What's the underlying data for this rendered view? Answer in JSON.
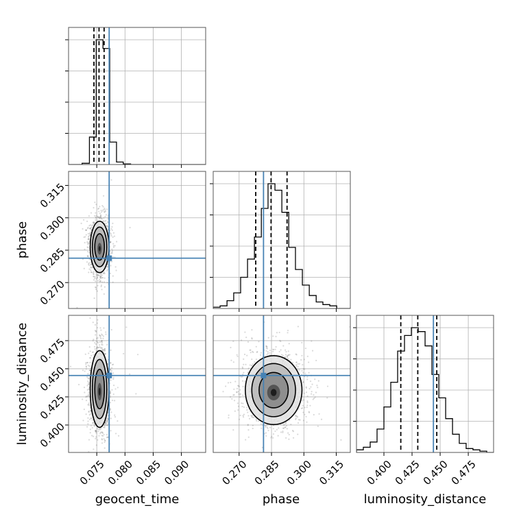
{
  "chart_data": {
    "type": "corner",
    "parameters": [
      "geocent_time",
      "phase",
      "luminosity_distance"
    ],
    "truth": {
      "geocent_time": 0.0772,
      "phase": 0.2813,
      "luminosity_distance": 0.444
    },
    "grid": true,
    "axes": {
      "geocent_time": {
        "range": [
          0.07,
          0.0943
        ],
        "ticks": [
          0.075,
          0.08,
          0.085,
          0.09
        ],
        "tick_labels": [
          "0.075",
          "0.080",
          "0.085",
          "0.090"
        ]
      },
      "phase": {
        "range": [
          0.258,
          0.3215
        ],
        "ticks": [
          0.27,
          0.285,
          0.3,
          0.315
        ],
        "tick_labels": [
          "0.270",
          "0.285",
          "0.300",
          "0.315"
        ]
      },
      "luminosity_distance": {
        "range": [
          0.3756,
          0.4975
        ],
        "ticks": [
          0.4,
          0.425,
          0.45,
          0.475
        ],
        "tick_labels": [
          "0.400",
          "0.425",
          "0.450",
          "0.475"
        ]
      }
    },
    "marginals": {
      "geocent_time": {
        "bin_edges": [
          0.07,
          0.0712,
          0.0724,
          0.0737,
          0.0749,
          0.0761,
          0.0773,
          0.0785,
          0.0797,
          0.081,
          0.0822,
          0.0834,
          0.0846,
          0.0858,
          0.087,
          0.0882,
          0.0894,
          0.0907,
          0.0919,
          0.0931,
          0.0943
        ],
        "counts": [
          0,
          0,
          0.01,
          0.22,
          1.0,
          0.93,
          0.18,
          0.02,
          0.005,
          0,
          0,
          0,
          0,
          0,
          0,
          0,
          0,
          0,
          0,
          0
        ],
        "quantiles": [
          0.0745,
          0.0754,
          0.0763
        ]
      },
      "phase": {
        "bin_edges": [
          0.258,
          0.2612,
          0.2644,
          0.2675,
          0.2707,
          0.2739,
          0.2771,
          0.2803,
          0.2834,
          0.2866,
          0.2898,
          0.293,
          0.2961,
          0.2993,
          0.3025,
          0.3057,
          0.3088,
          0.312,
          0.3152,
          0.3184,
          0.3215
        ],
        "counts": [
          0.01,
          0.02,
          0.06,
          0.12,
          0.24,
          0.38,
          0.55,
          0.77,
          0.96,
          0.91,
          0.74,
          0.47,
          0.3,
          0.18,
          0.1,
          0.05,
          0.03,
          0.02,
          0,
          0
        ],
        "quantiles": [
          0.2777,
          0.2848,
          0.2922
        ]
      },
      "luminosity_distance": {
        "bin_edges": [
          0.3756,
          0.3817,
          0.3878,
          0.3939,
          0.4,
          0.4061,
          0.4122,
          0.4183,
          0.4244,
          0.4305,
          0.4366,
          0.4427,
          0.4488,
          0.4549,
          0.461,
          0.467,
          0.4731,
          0.4792,
          0.4853,
          0.4914,
          0.4975
        ],
        "counts": [
          0.02,
          0.04,
          0.08,
          0.18,
          0.35,
          0.54,
          0.78,
          0.9,
          0.96,
          0.93,
          0.82,
          0.6,
          0.42,
          0.26,
          0.14,
          0.07,
          0.03,
          0.02,
          0.01,
          0
        ],
        "quantiles": [
          0.415,
          0.4301,
          0.447
        ]
      }
    },
    "joint": [
      {
        "x": "geocent_time",
        "y": "phase",
        "center": [
          0.0755,
          0.2865
        ],
        "sigma": [
          0.00095,
          0.0068
        ],
        "contour_levels": [
          0.4,
          0.9,
          1.35,
          1.75
        ]
      },
      {
        "x": "geocent_time",
        "y": "luminosity_distance",
        "center": [
          0.0755,
          0.432
        ],
        "sigma": [
          0.00095,
          0.0195
        ],
        "contour_levels": [
          0.4,
          0.9,
          1.35,
          1.75
        ]
      },
      {
        "x": "phase",
        "y": "luminosity_distance",
        "center": [
          0.286,
          0.431
        ],
        "sigma": [
          0.0075,
          0.0175
        ],
        "contour_levels": [
          0.4,
          0.9,
          1.35,
          1.75
        ]
      }
    ]
  }
}
